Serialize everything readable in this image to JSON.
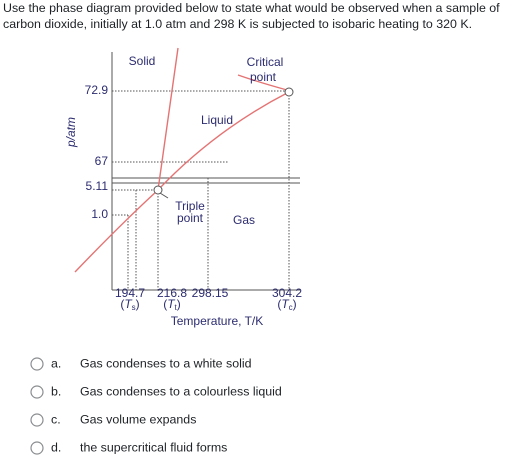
{
  "question_lines": [
    "Use the phase diagram provided below to state what would be observed when a sample of",
    "carbon dioxide, initially at 1.0 atm and 298 K is subjected to isobaric heating to 320 K."
  ],
  "diagram": {
    "y_axis_label": "p/atm",
    "y_ticks": [
      "72.9",
      "67",
      "5.11",
      "1.0"
    ],
    "x_ticks": [
      {
        "value": "194.7",
        "symbol": "T",
        "subscript": "s"
      },
      {
        "value": "216.8",
        "symbol": "T",
        "subscript": "t"
      },
      {
        "value": "298.15"
      },
      {
        "value": "304.2",
        "symbol": "T",
        "subscript": "c"
      }
    ],
    "x_axis_label": "Temperature, T/K",
    "regions": [
      "Solid",
      "Liquid",
      "Gas"
    ],
    "critical_point": [
      "Critical",
      "point"
    ],
    "triple_point": [
      "Triple",
      "point"
    ]
  },
  "options": [
    {
      "letter": "a.",
      "text": "Gas condenses to a white solid"
    },
    {
      "letter": "b.",
      "text": "Gas condenses to a colourless liquid"
    },
    {
      "letter": "c.",
      "text": "Gas volume expands"
    },
    {
      "letter": "d.",
      "text": "the supercritical fluid forms"
    }
  ]
}
